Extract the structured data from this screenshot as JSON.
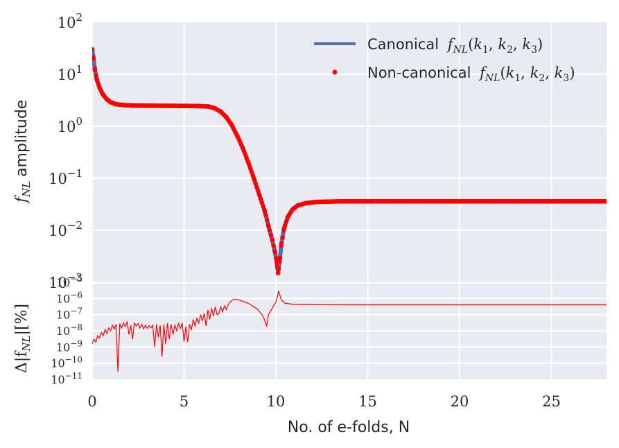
{
  "chart_data": [
    {
      "type": "line",
      "panel": "top",
      "xlabel": "",
      "ylabel_text": "amplitude",
      "ylabel_math": "f",
      "ylabel_math_sub": "NL",
      "yscale": "log",
      "ylim": [
        0.001,
        100
      ],
      "xlim": [
        0,
        28
      ],
      "grid": true,
      "background": "#eaeaf2",
      "legend_position": "top-right",
      "y_ticks": [
        {
          "value": 0.001,
          "base": "10",
          "exp": "−3"
        },
        {
          "value": 0.01,
          "base": "10",
          "exp": "−2"
        },
        {
          "value": 0.1,
          "base": "10",
          "exp": "−1"
        },
        {
          "value": 1,
          "base": "10",
          "exp": "0"
        },
        {
          "value": 10,
          "base": "10",
          "exp": "1"
        },
        {
          "value": 100,
          "base": "10",
          "exp": "2"
        }
      ],
      "series": [
        {
          "name_text": "Canonical",
          "name_math": "f",
          "name_math_sub": "NL",
          "name_math_args": "(k",
          "style": "line",
          "color": "#4c72b0",
          "points": [
            [
              0,
              30
            ],
            [
              0.08,
              20
            ],
            [
              0.15,
              12
            ],
            [
              0.25,
              8
            ],
            [
              0.4,
              5.5
            ],
            [
              0.6,
              4
            ],
            [
              0.8,
              3.3
            ],
            [
              1.0,
              2.9
            ],
            [
              1.3,
              2.65
            ],
            [
              1.7,
              2.55
            ],
            [
              2.2,
              2.5
            ],
            [
              3,
              2.48
            ],
            [
              4,
              2.47
            ],
            [
              5,
              2.46
            ],
            [
              5.8,
              2.44
            ],
            [
              6.3,
              2.4
            ],
            [
              6.7,
              2.2
            ],
            [
              7.0,
              1.9
            ],
            [
              7.3,
              1.5
            ],
            [
              7.6,
              1.05
            ],
            [
              7.9,
              0.65
            ],
            [
              8.2,
              0.38
            ],
            [
              8.5,
              0.2
            ],
            [
              8.8,
              0.1
            ],
            [
              9.1,
              0.048
            ],
            [
              9.4,
              0.023
            ],
            [
              9.6,
              0.012
            ],
            [
              9.8,
              0.0065
            ],
            [
              9.95,
              0.0038
            ],
            [
              10.05,
              0.0024
            ],
            [
              10.12,
              0.0015
            ],
            [
              10.2,
              0.0025
            ],
            [
              10.3,
              0.0055
            ],
            [
              10.45,
              0.011
            ],
            [
              10.65,
              0.018
            ],
            [
              10.9,
              0.025
            ],
            [
              11.2,
              0.03
            ],
            [
              11.6,
              0.033
            ],
            [
              12.2,
              0.035
            ],
            [
              13.5,
              0.036
            ],
            [
              16,
              0.036
            ],
            [
              20,
              0.036
            ],
            [
              24,
              0.036
            ],
            [
              28,
              0.036
            ]
          ]
        },
        {
          "name_text": "Non-canonical",
          "name_math": "f",
          "name_math_sub": "NL",
          "style": "dots",
          "color": "#ff0000",
          "points": [
            [
              0,
              30
            ],
            [
              0.08,
              20
            ],
            [
              0.15,
              12
            ],
            [
              0.25,
              8
            ],
            [
              0.4,
              5.5
            ],
            [
              0.6,
              4
            ],
            [
              0.8,
              3.3
            ],
            [
              1.0,
              2.9
            ],
            [
              1.3,
              2.65
            ],
            [
              1.7,
              2.55
            ],
            [
              2.2,
              2.5
            ],
            [
              3,
              2.48
            ],
            [
              4,
              2.47
            ],
            [
              5,
              2.46
            ],
            [
              5.8,
              2.44
            ],
            [
              6.3,
              2.4
            ],
            [
              6.7,
              2.2
            ],
            [
              7.0,
              1.9
            ],
            [
              7.3,
              1.5
            ],
            [
              7.6,
              1.05
            ],
            [
              7.9,
              0.65
            ],
            [
              8.2,
              0.38
            ],
            [
              8.5,
              0.2
            ],
            [
              8.8,
              0.1
            ],
            [
              9.1,
              0.048
            ],
            [
              9.4,
              0.023
            ],
            [
              9.6,
              0.012
            ],
            [
              9.8,
              0.0065
            ],
            [
              9.95,
              0.0038
            ],
            [
              10.05,
              0.0024
            ],
            [
              10.12,
              0.0015
            ],
            [
              10.2,
              0.0025
            ],
            [
              10.3,
              0.0055
            ],
            [
              10.45,
              0.011
            ],
            [
              10.65,
              0.018
            ],
            [
              10.9,
              0.025
            ],
            [
              11.2,
              0.03
            ],
            [
              11.6,
              0.033
            ],
            [
              12.2,
              0.035
            ],
            [
              13.5,
              0.036
            ],
            [
              16,
              0.036
            ],
            [
              20,
              0.036
            ],
            [
              24,
              0.036
            ],
            [
              28,
              0.036
            ]
          ]
        }
      ]
    },
    {
      "type": "line",
      "panel": "bottom",
      "xlabel": "No. of e-folds, N",
      "ylabel_math": "Δ|f",
      "ylabel_math_sub": "NL",
      "ylabel_tail": "|[%]",
      "yscale": "log",
      "ylim": [
        1e-11,
        1e-05
      ],
      "xlim": [
        0,
        28
      ],
      "grid": true,
      "background": "#eaeaf2",
      "x_ticks": [
        0,
        5,
        10,
        15,
        20,
        25
      ],
      "y_ticks": [
        {
          "value": 1e-05,
          "base": "10",
          "exp": "−5"
        },
        {
          "value": 1e-06,
          "base": "10",
          "exp": "−6"
        },
        {
          "value": 1e-07,
          "base": "10",
          "exp": "−7"
        },
        {
          "value": 1e-08,
          "base": "10",
          "exp": "−8"
        },
        {
          "value": 1e-09,
          "base": "10",
          "exp": "−9"
        },
        {
          "value": 1e-10,
          "base": "10",
          "exp": "−10"
        },
        {
          "value": 1e-11,
          "base": "10",
          "exp": "−11"
        }
      ],
      "series": [
        {
          "name": "",
          "color": "#ff0000",
          "points": [
            [
              0,
              1.6e-09
            ],
            [
              0.1,
              3e-09
            ],
            [
              0.2,
              2e-09
            ],
            [
              0.3,
              5e-09
            ],
            [
              0.4,
              3.5e-09
            ],
            [
              0.5,
              8e-09
            ],
            [
              0.6,
              5e-09
            ],
            [
              0.7,
              1.2e-08
            ],
            [
              0.8,
              7e-09
            ],
            [
              0.9,
              1.5e-08
            ],
            [
              1.0,
              1e-08
            ],
            [
              1.1,
              2.2e-08
            ],
            [
              1.2,
              1.3e-08
            ],
            [
              1.3,
              2.5e-08
            ],
            [
              1.4,
              3e-11
            ],
            [
              1.5,
              2.8e-08
            ],
            [
              1.6,
              1.5e-08
            ],
            [
              1.7,
              3e-08
            ],
            [
              1.8,
              1.8e-08
            ],
            [
              1.9,
              3.5e-08
            ],
            [
              2.0,
              6e-09
            ],
            [
              2.1,
              2.2e-08
            ],
            [
              2.2,
              3e-09
            ],
            [
              2.3,
              3e-08
            ],
            [
              2.4,
              2e-08
            ],
            [
              2.5,
              2.8e-08
            ],
            [
              2.6,
              1.5e-08
            ],
            [
              2.7,
              2.5e-08
            ],
            [
              2.8,
              1.3e-08
            ],
            [
              2.9,
              2.2e-08
            ],
            [
              3.0,
              1.4e-08
            ],
            [
              3.1,
              2.1e-08
            ],
            [
              3.2,
              1.5e-08
            ],
            [
              3.3,
              2.2e-08
            ],
            [
              3.4,
              1e-09
            ],
            [
              3.5,
              2.5e-08
            ],
            [
              3.6,
              4e-09
            ],
            [
              3.7,
              2.2e-08
            ],
            [
              3.8,
              2.5e-10
            ],
            [
              3.9,
              2.4e-08
            ],
            [
              4.0,
              1.5e-09
            ],
            [
              4.1,
              3e-08
            ],
            [
              4.2,
              3e-09
            ],
            [
              4.3,
              2.5e-08
            ],
            [
              4.4,
              6e-09
            ],
            [
              4.5,
              2.2e-08
            ],
            [
              4.6,
              1e-08
            ],
            [
              4.7,
              2.8e-08
            ],
            [
              4.8,
              1.4e-08
            ],
            [
              4.9,
              3e-08
            ],
            [
              5.0,
              2.2e-09
            ],
            [
              5.1,
              1.8e-08
            ],
            [
              5.2,
              2e-09
            ],
            [
              5.3,
              2.5e-08
            ],
            [
              5.4,
              1.2e-08
            ],
            [
              5.5,
              5e-08
            ],
            [
              5.6,
              2e-08
            ],
            [
              5.7,
              6e-08
            ],
            [
              5.8,
              3e-08
            ],
            [
              5.9,
              1e-07
            ],
            [
              6.0,
              4e-08
            ],
            [
              6.1,
              1.2e-07
            ],
            [
              6.2,
              2e-08
            ],
            [
              6.3,
              2e-07
            ],
            [
              6.4,
              5e-08
            ],
            [
              6.5,
              2.5e-07
            ],
            [
              6.6,
              8e-08
            ],
            [
              6.7,
              3e-07
            ],
            [
              6.8,
              1e-07
            ],
            [
              6.9,
              1.2e-07
            ],
            [
              7.0,
              3e-07
            ],
            [
              7.1,
              1.5e-07
            ],
            [
              7.2,
              3.5e-07
            ],
            [
              7.3,
              2e-07
            ],
            [
              7.4,
              4e-07
            ],
            [
              7.5,
              6e-07
            ],
            [
              7.7,
              9e-07
            ],
            [
              8.0,
              8e-07
            ],
            [
              8.5,
              5e-07
            ],
            [
              9.0,
              2.2e-07
            ],
            [
              9.3,
              8e-08
            ],
            [
              9.4,
              4e-08
            ],
            [
              9.5,
              2e-08
            ],
            [
              9.55,
              5e-08
            ],
            [
              9.6,
              1e-07
            ],
            [
              9.8,
              2.5e-07
            ],
            [
              10.0,
              6e-07
            ],
            [
              10.1,
              1.5e-06
            ],
            [
              10.15,
              3e-06
            ],
            [
              10.2,
              1.8e-06
            ],
            [
              10.3,
              8e-07
            ],
            [
              10.5,
              5e-07
            ],
            [
              11,
              4.3e-07
            ],
            [
              12,
              4.1e-07
            ],
            [
              14,
              4e-07
            ],
            [
              18,
              4e-07
            ],
            [
              22,
              4e-07
            ],
            [
              28,
              4e-07
            ]
          ]
        }
      ]
    }
  ]
}
